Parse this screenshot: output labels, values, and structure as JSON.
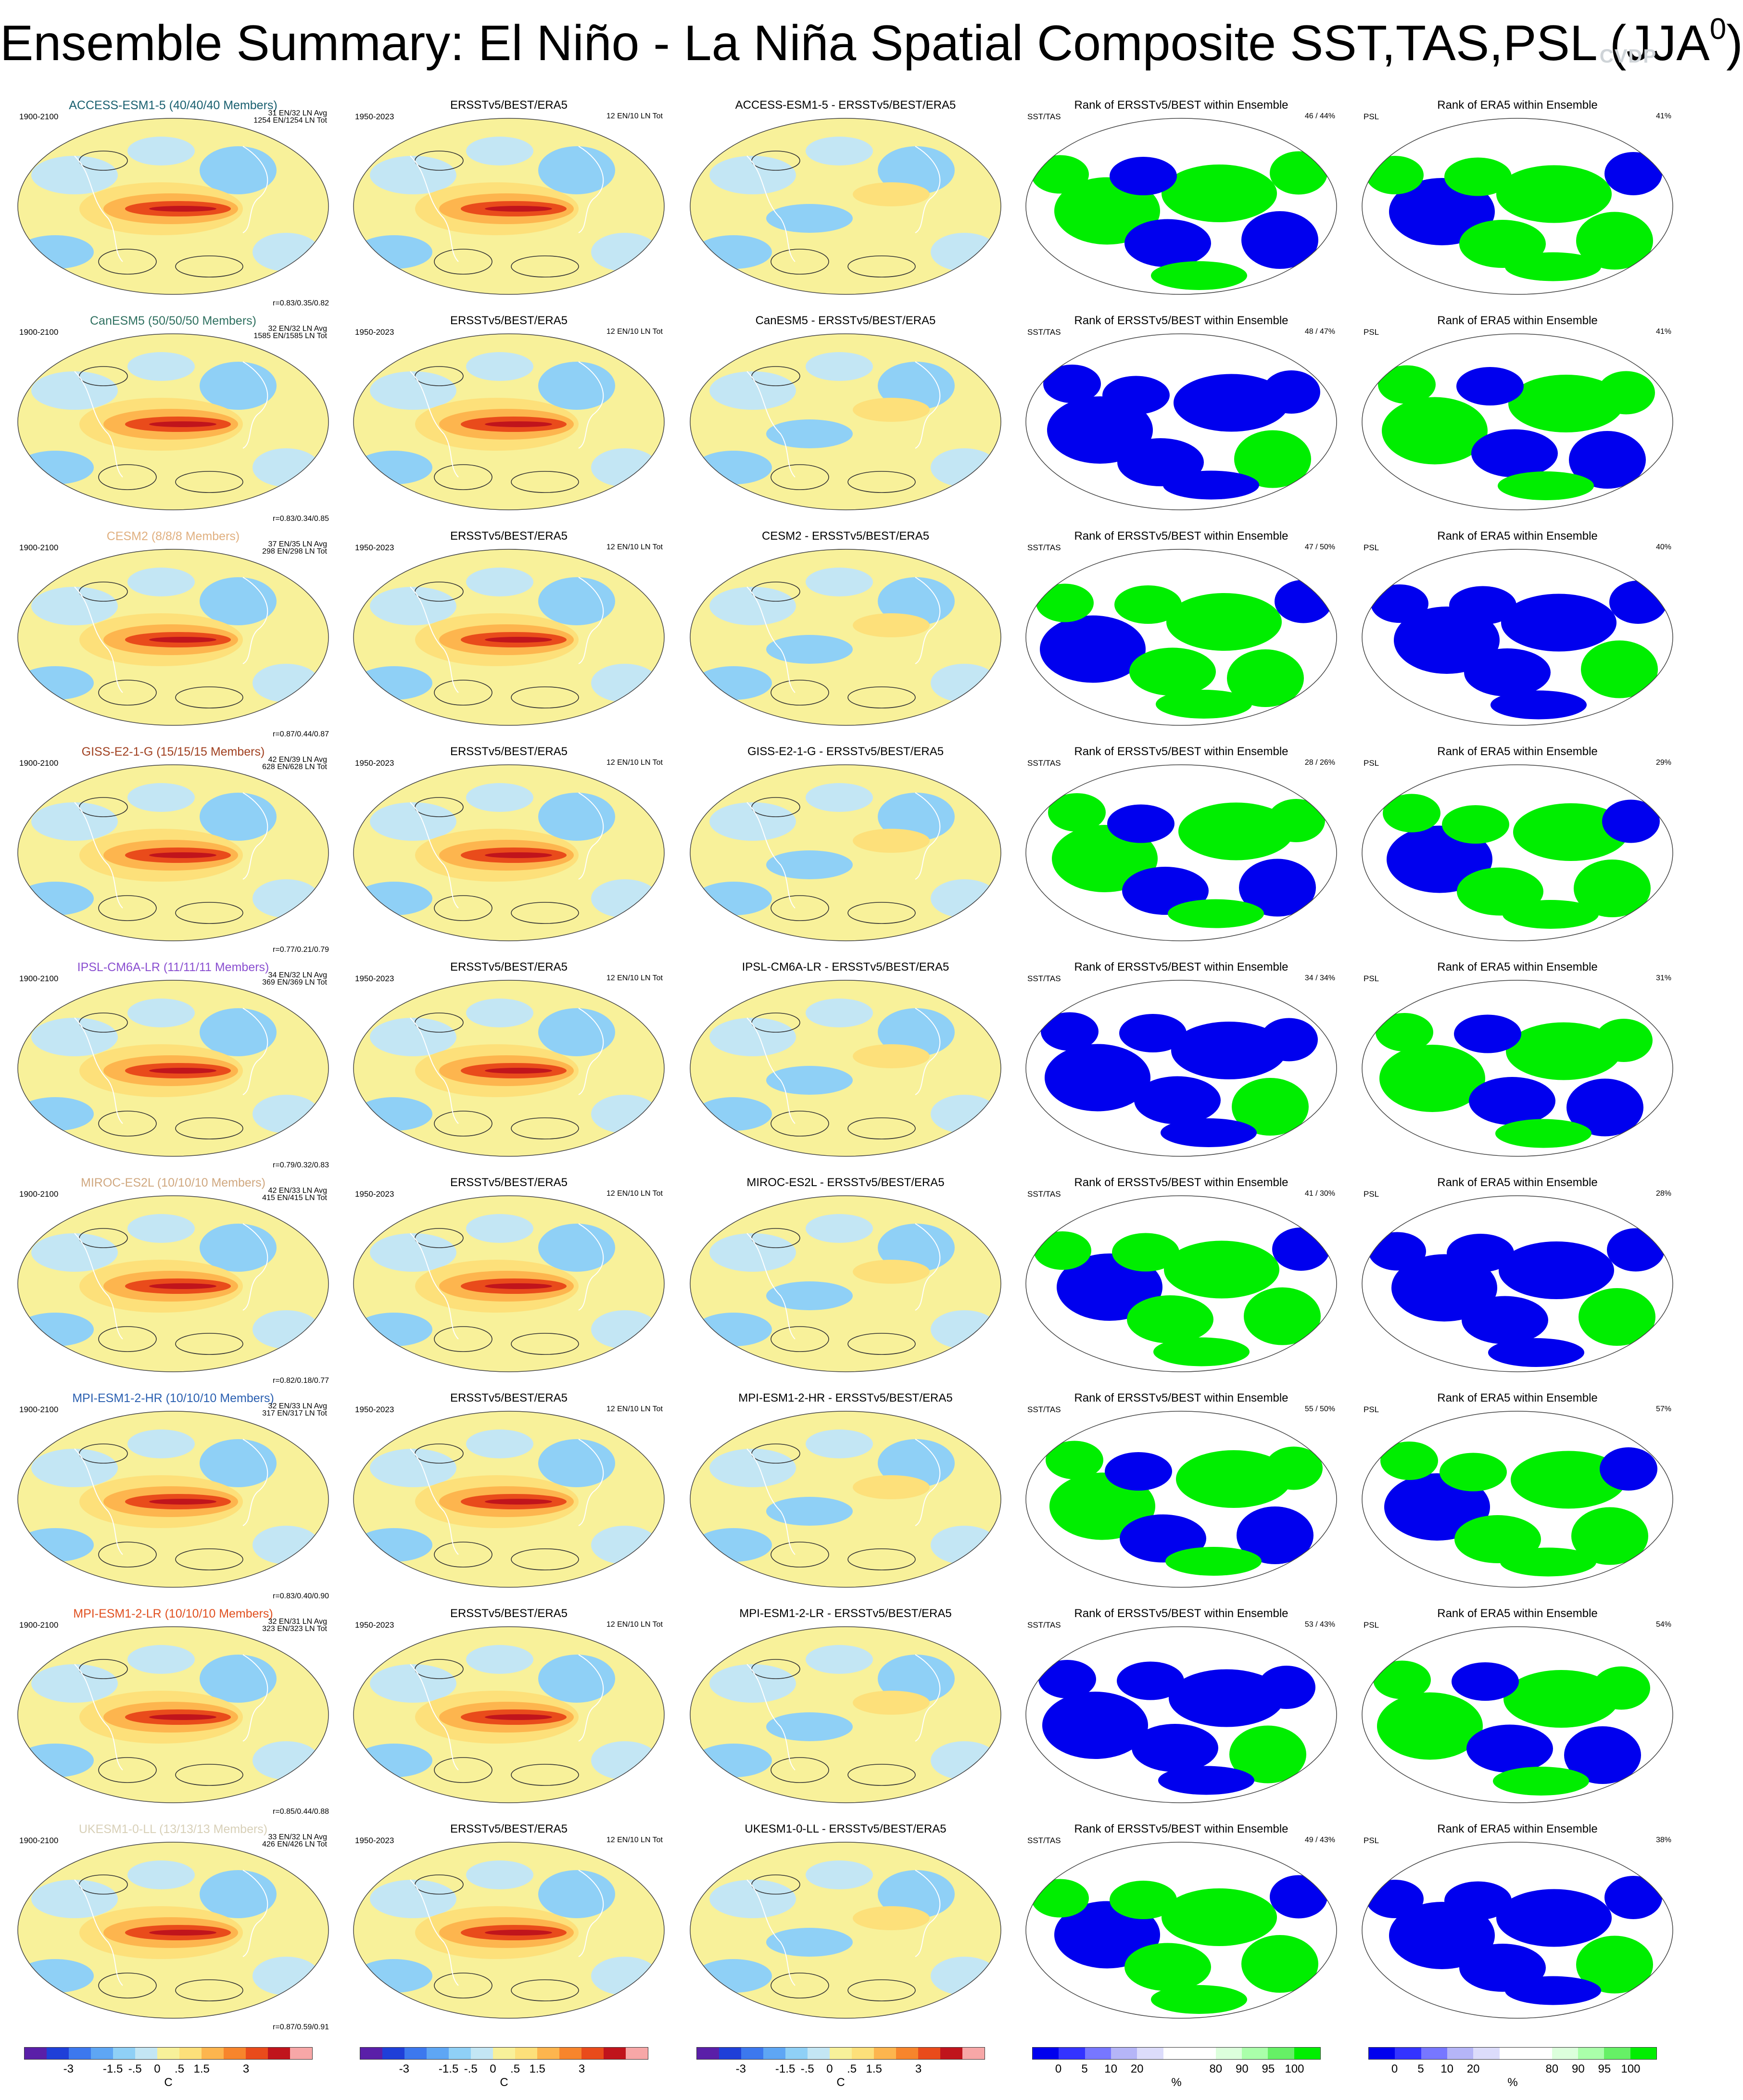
{
  "title": {
    "main": "Ensemble Summary: El Niño - La Niña Spatial Composite SST,TAS,PSL (JJA",
    "sup": "0",
    "close": ")"
  },
  "watermark": "CVDP",
  "colors": {
    "model_diverging": [
      "#5a1fa8",
      "#1f3fd8",
      "#3c78ee",
      "#5ea6f4",
      "#8fd0f6",
      "#c3e6f4",
      "#f8f19a",
      "#fde07a",
      "#fdb54e",
      "#f7852c",
      "#e94b1b",
      "#c0141c",
      "#f7a7a7"
    ],
    "rank": [
      "#0000ee",
      "#3333ff",
      "#7777ff",
      "#b5b5f7",
      "#dcdcfb",
      "#ffffff",
      "#ffffff",
      "#dcffdc",
      "#aaffaa",
      "#66f066",
      "#00ee00"
    ]
  },
  "models": [
    {
      "name": "ACCESS-ESM1-5 (40/40/40 Members)",
      "color": "#1a6070",
      "period": "1900-2100",
      "stats1": "31 EN/32 LN Avg",
      "stats2": "1254 EN/1254 LN Tot",
      "corr": "r=0.83/0.35/0.82",
      "diff_title": "ACCESS-ESM1-5 - ERSSTv5/BEST/ERA5",
      "pct_sst": "46 /  44%",
      "pct_psl": "41%"
    },
    {
      "name": "CanESM5 (50/50/50 Members)",
      "color": "#2f7060",
      "period": "1900-2100",
      "stats1": "32 EN/32 LN Avg",
      "stats2": "1585 EN/1585 LN Tot",
      "corr": "r=0.83/0.34/0.85",
      "diff_title": "CanESM5 - ERSSTv5/BEST/ERA5",
      "pct_sst": "48 /  47%",
      "pct_psl": "41%"
    },
    {
      "name": "CESM2 (8/8/8 Members)",
      "color": "#e0b080",
      "period": "1900-2100",
      "stats1": "37 EN/35 LN Avg",
      "stats2": "298 EN/298 LN Tot",
      "corr": "r=0.87/0.44/0.87",
      "diff_title": "CESM2 - ERSSTv5/BEST/ERA5",
      "pct_sst": "47 /  50%",
      "pct_psl": "40%"
    },
    {
      "name": "GISS-E2-1-G (15/15/15 Members)",
      "color": "#a04020",
      "period": "1900-2100",
      "stats1": "42 EN/39 LN Avg",
      "stats2": "628 EN/628 LN Tot",
      "corr": "r=0.77/0.21/0.79",
      "diff_title": "GISS-E2-1-G - ERSSTv5/BEST/ERA5",
      "pct_sst": "28 /  26%",
      "pct_psl": "29%"
    },
    {
      "name": "IPSL-CM6A-LR (11/11/11 Members)",
      "color": "#8a4fd0",
      "period": "1900-2100",
      "stats1": "34 EN/32 LN Avg",
      "stats2": "369 EN/369 LN Tot",
      "corr": "r=0.79/0.32/0.83",
      "diff_title": "IPSL-CM6A-LR - ERSSTv5/BEST/ERA5",
      "pct_sst": "34 /  34%",
      "pct_psl": "31%"
    },
    {
      "name": "MIROC-ES2L (10/10/10 Members)",
      "color": "#d0a880",
      "period": "1900-2100",
      "stats1": "42 EN/33 LN Avg",
      "stats2": "415 EN/415 LN Tot",
      "corr": "r=0.82/0.18/0.77",
      "diff_title": "MIROC-ES2L - ERSSTv5/BEST/ERA5",
      "pct_sst": "41 /  30%",
      "pct_psl": "28%"
    },
    {
      "name": "MPI-ESM1-2-HR (10/10/10 Members)",
      "color": "#2a5fb0",
      "period": "1900-2100",
      "stats1": "32 EN/33 LN Avg",
      "stats2": "317 EN/317 LN Tot",
      "corr": "r=0.83/0.40/0.90",
      "diff_title": "MPI-ESM1-2-HR - ERSSTv5/BEST/ERA5",
      "pct_sst": "55 /  50%",
      "pct_psl": "57%"
    },
    {
      "name": "MPI-ESM1-2-LR (10/10/10 Members)",
      "color": "#e05020",
      "period": "1900-2100",
      "stats1": "32 EN/31 LN Avg",
      "stats2": "323 EN/323 LN Tot",
      "corr": "r=0.85/0.44/0.88",
      "diff_title": "MPI-ESM1-2-LR - ERSSTv5/BEST/ERA5",
      "pct_sst": "53 /  43%",
      "pct_psl": "54%"
    },
    {
      "name": "UKESM1-0-LL (13/13/13 Members)",
      "color": "#d8d0b8",
      "period": "1900-2100",
      "stats1": "33 EN/32 LN Avg",
      "stats2": "426 EN/426 LN Tot",
      "corr": "r=0.87/0.59/0.91",
      "diff_title": "UKESM1-0-LL - ERSSTv5/BEST/ERA5",
      "pct_sst": "49 /  43%",
      "pct_psl": "38%"
    }
  ],
  "obs": {
    "title": "ERSSTv5/BEST/ERA5",
    "period": "1950-2023",
    "stats": "12 EN/10 LN Tot"
  },
  "rank_sst": {
    "title": "Rank of ERSSTv5/BEST within Ensemble",
    "label": "SST/TAS"
  },
  "rank_psl": {
    "title": "Rank of ERA5 within Ensemble",
    "label": "PSL"
  },
  "colorbars": {
    "temp_ticks": [
      "-3",
      "-1.5",
      "-.5",
      "0",
      ".5",
      "1.5",
      "3"
    ],
    "temp_unit": "C",
    "rank_ticks": [
      "0",
      "5",
      "10",
      "20",
      "80",
      "90",
      "95",
      "100"
    ],
    "rank_unit": "%"
  }
}
